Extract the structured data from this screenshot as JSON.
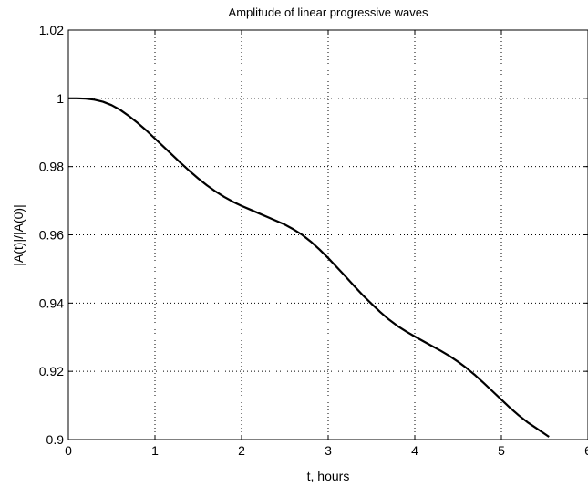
{
  "chart_data": {
    "type": "line",
    "title": "Amplitude of linear progressive waves",
    "xlabel": "t, hours",
    "ylabel": "|A(t)|/|A(0)|",
    "xlim": [
      0,
      6
    ],
    "ylim": [
      0.9,
      1.02
    ],
    "xticks": [
      "0",
      "1",
      "2",
      "3",
      "4",
      "5",
      "6"
    ],
    "yticks": [
      "0.9",
      "0.92",
      "0.94",
      "0.96",
      "0.98",
      "1",
      "1.02"
    ],
    "grid": true,
    "line_color": "#000000",
    "series": [
      {
        "x": [
          0,
          0.1,
          0.2,
          0.3,
          0.4,
          0.5,
          0.6,
          0.7,
          0.8,
          0.9,
          1.0,
          1.1,
          1.2,
          1.3,
          1.4,
          1.5,
          1.6,
          1.7,
          1.8,
          1.9,
          2.0,
          2.1,
          2.2,
          2.3,
          2.4,
          2.5,
          2.6,
          2.7,
          2.8,
          2.9,
          3.0,
          3.1,
          3.2,
          3.3,
          3.4,
          3.5,
          3.6,
          3.7,
          3.8,
          3.9,
          4.0,
          4.1,
          4.2,
          4.3,
          4.4,
          4.5,
          4.6,
          4.7,
          4.8,
          4.9,
          5.0,
          5.1,
          5.2,
          5.3,
          5.4,
          5.55
        ],
        "y": [
          1.0,
          1.0,
          0.9999,
          0.9996,
          0.999,
          0.998,
          0.9966,
          0.9948,
          0.9928,
          0.9906,
          0.9882,
          0.9858,
          0.9834,
          0.981,
          0.9787,
          0.9765,
          0.9745,
          0.9727,
          0.9711,
          0.9697,
          0.9685,
          0.9674,
          0.9663,
          0.9652,
          0.9641,
          0.963,
          0.9616,
          0.96,
          0.958,
          0.9557,
          0.9532,
          0.9505,
          0.9478,
          0.945,
          0.9423,
          0.9398,
          0.9374,
          0.9352,
          0.9333,
          0.9317,
          0.9302,
          0.9288,
          0.9274,
          0.926,
          0.9245,
          0.9228,
          0.9209,
          0.9188,
          0.9165,
          0.9141,
          0.9117,
          0.9093,
          0.9071,
          0.9051,
          0.9034,
          0.9008
        ]
      }
    ]
  }
}
